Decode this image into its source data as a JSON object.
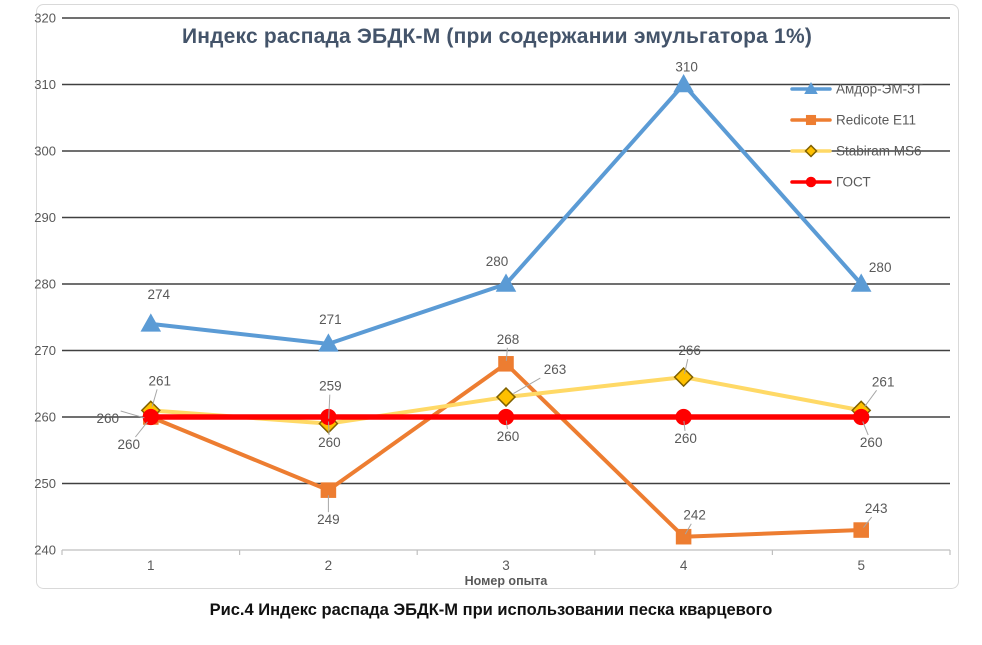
{
  "caption": "Рис.4 Индекс распада ЭБДК-М при использовании песка кварцевого",
  "colors": {
    "frame_border": "#D9D9D9",
    "gridline": "#404040",
    "bottom_axis": "#BFBFBF",
    "tick_text": "#595959",
    "label_text": "#595959",
    "legend_text": "#595959",
    "leader_line": "#A6A6A6",
    "title_text": "#44546A",
    "axis_title_text": "#595959"
  },
  "chart_data": {
    "type": "line",
    "title": "Индекс распада ЭБДК-М (при содержании эмульгатора 1%)",
    "xlabel": "Номер опыта",
    "ylabel": "",
    "categories": [
      1,
      2,
      3,
      4,
      5
    ],
    "ylim": [
      240,
      320
    ],
    "ytick_step": 10,
    "grid": true,
    "legend_position": "top-right",
    "series": [
      {
        "name": "Амдор-ЭМ-3Т",
        "values": [
          274,
          271,
          280,
          310,
          280
        ],
        "line_color": "#5B9BD5",
        "marker": "triangle",
        "marker_fill": "#5B9BD5",
        "marker_stroke": "#5B9BD5",
        "line_width": 4,
        "label_offsets": [
          [
            8,
            -25
          ],
          [
            2,
            -20
          ],
          [
            -9,
            -18
          ],
          [
            3,
            -13
          ],
          [
            19,
            -12
          ]
        ],
        "label_leaders": false
      },
      {
        "name": "Redicote E11",
        "values": [
          260,
          249,
          268,
          242,
          243
        ],
        "line_color": "#ED7D31",
        "marker": "square",
        "marker_fill": "#ED7D31",
        "marker_stroke": "#ED7D31",
        "line_width": 4,
        "label_offsets": [
          [
            -22,
            32
          ],
          [
            0,
            34
          ],
          [
            2,
            -20
          ],
          [
            11,
            -17
          ],
          [
            15,
            -17
          ]
        ],
        "label_leaders": true
      },
      {
        "name": "Stabiram MS6",
        "values": [
          261,
          259,
          263,
          266,
          261
        ],
        "line_color": "#FFD966",
        "marker": "diamond",
        "marker_fill": "#FFC000",
        "marker_stroke": "#7F6000",
        "line_width": 4,
        "label_offsets": [
          [
            9,
            -25
          ],
          [
            2,
            -33
          ],
          [
            49,
            -23
          ],
          [
            6,
            -22
          ],
          [
            22,
            -24
          ]
        ],
        "label_leaders": true
      },
      {
        "name": "ГОСТ",
        "values": [
          260,
          260,
          260,
          260,
          260
        ],
        "line_color": "#FF0000",
        "marker": "circle",
        "marker_fill": "#FF0000",
        "marker_stroke": "#FF0000",
        "line_width": 5.5,
        "label_offsets": [
          [
            -43,
            6
          ],
          [
            1,
            30
          ],
          [
            2,
            24
          ],
          [
            2,
            26
          ],
          [
            10,
            30
          ]
        ],
        "label_leaders": true
      }
    ]
  }
}
